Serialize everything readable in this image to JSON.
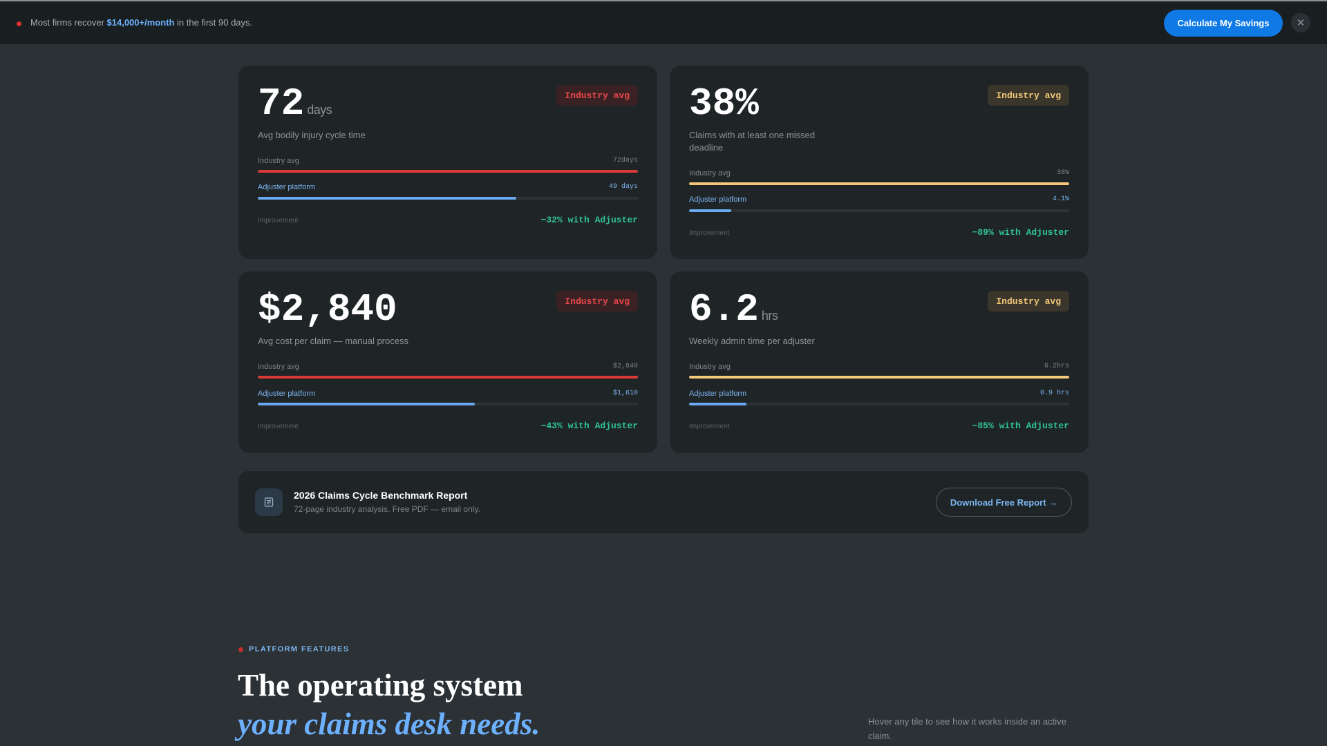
{
  "banner": {
    "text_before": "Most firms recover ",
    "highlight": "$14,000+/month",
    "text_after": " in the first 90 days.",
    "cta_label": "Calculate My Savings",
    "close_label": "✕"
  },
  "cards": [
    {
      "value": "72",
      "unit": "days",
      "description": "Avg bodily injury cycle time",
      "badge": "Industry avg",
      "badge_color": "#e8464a",
      "industry_label": "Industry avg",
      "industry_value": "72days",
      "industry_fill": 1.0,
      "platform_label": "Adjuster platform",
      "platform_value": "49 days",
      "platform_fill": 0.68,
      "improvement_label": "Improvement",
      "improvement_value": "−32% with Adjuster"
    },
    {
      "value": "38%",
      "unit": "",
      "description": "Claims with at least one missed deadline",
      "badge": "Industry avg",
      "badge_color": "#f3c97a",
      "industry_label": "Industry avg",
      "industry_value": "38%",
      "industry_fill": 1.0,
      "platform_label": "Adjuster platform",
      "platform_value": "4.1%",
      "platform_fill": 0.11,
      "improvement_label": "Improvement",
      "improvement_value": "−89% with Adjuster"
    },
    {
      "value": "$2,840",
      "unit": "",
      "description": "Avg cost per claim — manual process",
      "badge": "Industry avg",
      "badge_color": "#e8464a",
      "industry_label": "Industry avg",
      "industry_value": "$2,840",
      "industry_fill": 1.0,
      "platform_label": "Adjuster platform",
      "platform_value": "$1,610",
      "platform_fill": 0.57,
      "improvement_label": "Improvement",
      "improvement_value": "−43% with Adjuster"
    },
    {
      "value": "6.2",
      "unit": "hrs",
      "description": "Weekly admin time per adjuster",
      "badge": "Industry avg",
      "badge_color": "#f3c97a",
      "industry_label": "Industry avg",
      "industry_value": "6.2hrs",
      "industry_fill": 1.0,
      "platform_label": "Adjuster platform",
      "platform_value": "0.9 hrs",
      "platform_fill": 0.15,
      "improvement_label": "Improvement",
      "improvement_value": "−85% with Adjuster"
    }
  ],
  "report": {
    "title": "2026 Claims Cycle Benchmark Report",
    "subtitle": "72-page industry analysis. Free PDF — email only.",
    "button": "Download Free Report →",
    "icon": "document-icon"
  },
  "features": {
    "eyebrow": "PLATFORM FEATURES",
    "headline_line1": "The operating system",
    "headline_line2": "your claims desk needs.",
    "hint": "Hover any tile to see how it works inside an active claim."
  }
}
